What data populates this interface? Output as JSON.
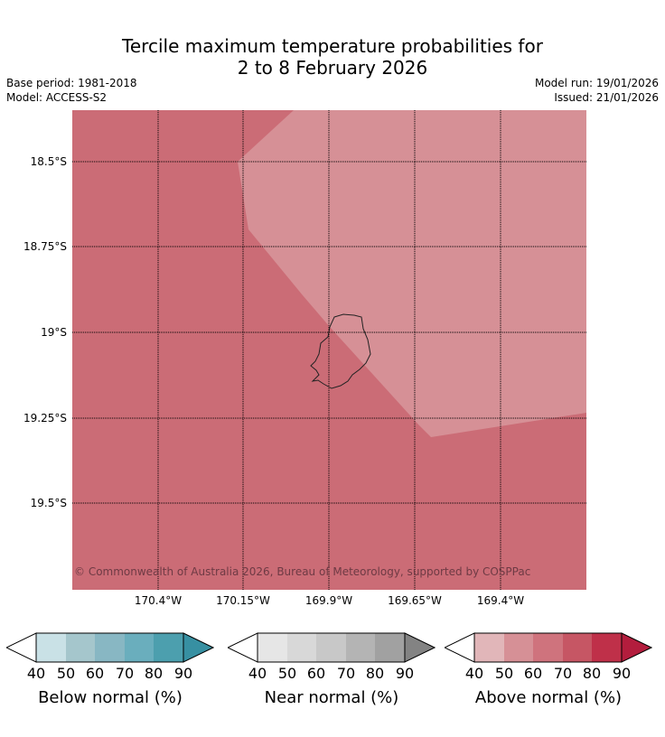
{
  "title": {
    "line1": "Tercile maximum temperature probabilities for",
    "line2": "2 to 8 February 2026"
  },
  "meta": {
    "base_period": "Base period: 1981-2018",
    "model": "Model: ACCESS-S2",
    "model_run": "Model run: 19/01/2026",
    "issued": "Issued: 21/01/2026"
  },
  "map": {
    "lat_labels": [
      "18.5°S",
      "18.75°S",
      "19°S",
      "19.25°S",
      "19.5°S"
    ],
    "lon_labels": [
      "170.4°W",
      "170.15°W",
      "169.9°W",
      "169.65°W",
      "169.4°W"
    ],
    "region_colors": {
      "base": "#cb6c76",
      "light": "#d69096"
    },
    "copyright": "© Commonwealth of Australia 2026, Bureau of Meteorology, supported by COSPPac"
  },
  "colorbars": [
    {
      "name": "below",
      "label": "Below normal (%)",
      "ticks": [
        "40",
        "50",
        "60",
        "70",
        "80",
        "90"
      ],
      "colors": [
        "#c9e1e6",
        "#a5c6cc",
        "#88b7c3",
        "#6aaebd",
        "#4c9fae",
        "#3790a2"
      ]
    },
    {
      "name": "near",
      "label": "Near normal (%)",
      "ticks": [
        "40",
        "50",
        "60",
        "70",
        "80",
        "90"
      ],
      "colors": [
        "#e6e6e6",
        "#d8d8d8",
        "#c8c8c8",
        "#b4b4b4",
        "#a1a1a1",
        "#838383"
      ]
    },
    {
      "name": "above",
      "label": "Above normal (%)",
      "ticks": [
        "40",
        "50",
        "60",
        "70",
        "80",
        "90"
      ],
      "colors": [
        "#e1b6b9",
        "#d69096",
        "#cf737d",
        "#c65664",
        "#bf3049",
        "#b31d3d"
      ]
    }
  ]
}
